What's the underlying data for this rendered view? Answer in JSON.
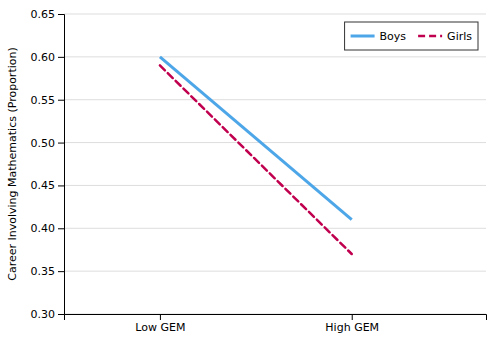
{
  "chart_data": {
    "type": "line",
    "ylabel": "Career Involving Mathematics (Proportion)",
    "x": [
      1,
      2
    ],
    "xlim": [
      0.5,
      2.7
    ],
    "xticks": [
      {
        "value": 1,
        "label": "Low GEM"
      },
      {
        "value": 2,
        "label": "High GEM"
      }
    ],
    "ylim": [
      0.3,
      0.65
    ],
    "yticks": [
      {
        "value": 0.3,
        "label": "0.30"
      },
      0.35,
      {
        "value": 0.4,
        "label": "0.40"
      },
      0.45,
      {
        "value": 0.5,
        "label": "0.50"
      },
      0.55,
      {
        "value": 0.6,
        "label": "0.60"
      },
      0.65
    ],
    "grid": true,
    "legend": "upper right",
    "series": [
      {
        "name": "Boys",
        "color": "#4da6e8",
        "line_style": "solid",
        "values": [
          0.6,
          0.41
        ]
      },
      {
        "name": "Girls",
        "color": "#c0004e",
        "line_style": "dashed",
        "values": [
          0.59,
          0.37
        ]
      }
    ]
  }
}
